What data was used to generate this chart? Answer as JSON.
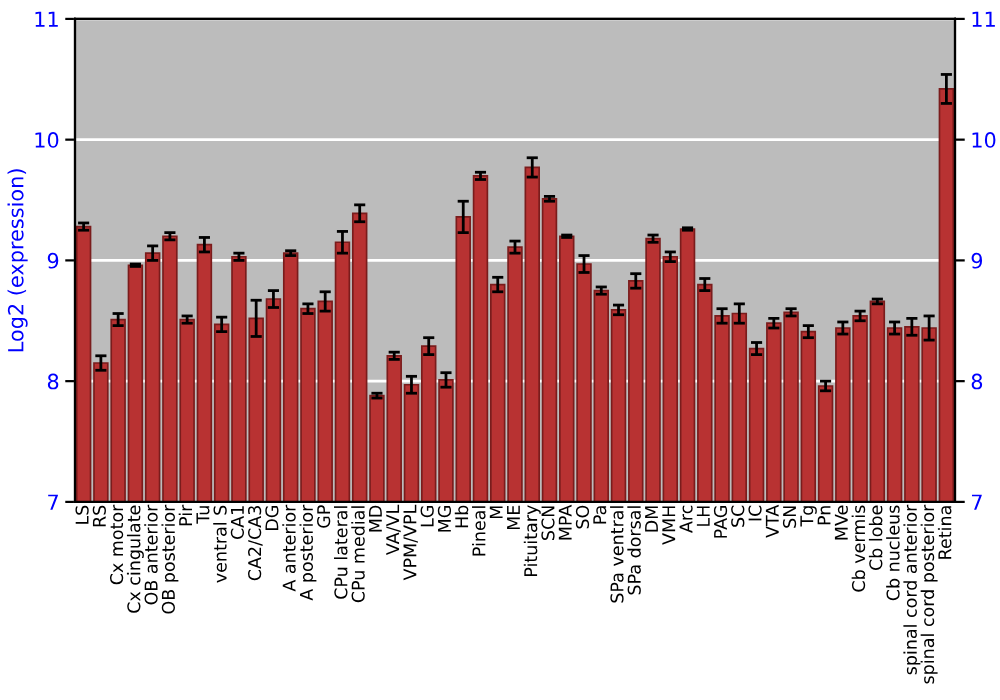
{
  "chart_data": {
    "type": "bar",
    "ylabel": "Log2 (expression)",
    "categories": [
      "LS",
      "RS",
      "Cx motor",
      "Cx cingulate",
      "OB anterior",
      "OB posterior",
      "Pir",
      "Tu",
      "ventral S",
      "CA1",
      "CA2/CA3",
      "DG",
      "A anterior",
      "A posterior",
      "GP",
      "CPu lateral",
      "CPu medial",
      "MD",
      "VA/VL",
      "VPM/VPL",
      "LG",
      "MG",
      "Hb",
      "Pineal",
      "M",
      "ME",
      "Pituitary",
      "SCN",
      "MPA",
      "SO",
      "Pa",
      "SPa ventral",
      "SPa dorsal",
      "DM",
      "VMH",
      "Arc",
      "LH",
      "PAG",
      "SC",
      "IC",
      "VTA",
      "SN",
      "Tg",
      "Pn",
      "MVe",
      "Cb vermis",
      "Cb lobe",
      "Cb nucleus",
      "spinal cord anterior",
      "spinal cord posterior",
      "Retina"
    ],
    "values": [
      9.28,
      8.15,
      8.51,
      8.96,
      9.06,
      9.2,
      8.51,
      9.13,
      8.47,
      9.03,
      8.52,
      8.68,
      9.06,
      8.6,
      8.66,
      9.15,
      9.39,
      7.88,
      8.21,
      7.97,
      8.29,
      8.01,
      9.36,
      9.7,
      8.8,
      9.11,
      9.77,
      9.51,
      9.2,
      8.97,
      8.75,
      8.59,
      8.83,
      9.18,
      9.03,
      9.26,
      8.8,
      8.54,
      8.56,
      8.27,
      8.48,
      8.57,
      8.41,
      7.96,
      8.44,
      8.54,
      8.66,
      8.44,
      8.45,
      8.44,
      10.42
    ],
    "errors": [
      0.03,
      0.06,
      0.05,
      0.01,
      0.06,
      0.03,
      0.03,
      0.06,
      0.06,
      0.03,
      0.15,
      0.07,
      0.02,
      0.04,
      0.08,
      0.09,
      0.07,
      0.02,
      0.03,
      0.07,
      0.07,
      0.06,
      0.13,
      0.03,
      0.06,
      0.05,
      0.08,
      0.02,
      0.01,
      0.07,
      0.03,
      0.04,
      0.06,
      0.03,
      0.04,
      0.01,
      0.05,
      0.06,
      0.08,
      0.05,
      0.04,
      0.03,
      0.05,
      0.04,
      0.05,
      0.04,
      0.02,
      0.05,
      0.07,
      0.1,
      0.12
    ],
    "color": "#b83232",
    "ylim": [
      7,
      11
    ],
    "yticks": [
      7,
      8,
      9,
      10,
      11
    ],
    "y2lim": [
      7,
      11
    ],
    "y2ticks": [
      7,
      8,
      9,
      10,
      11
    ],
    "grid": "y",
    "legend": false
  }
}
